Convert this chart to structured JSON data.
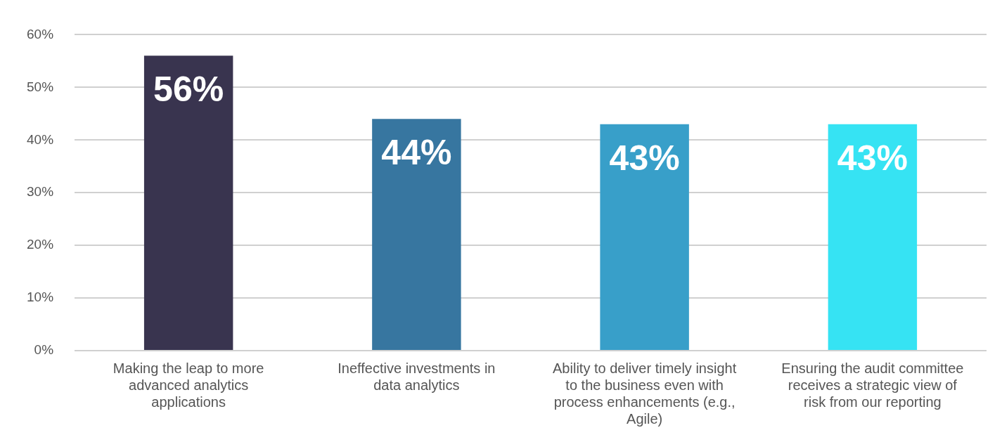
{
  "chart_data": {
    "type": "bar",
    "categories": [
      "Making the leap to more advanced analytics applications",
      "Ineffective investments in data analytics",
      "Ability to deliver timely insight to the business even with process enhancements (e.g., Agile)",
      "Ensuring the audit committee receives a strategic view of risk from our reporting"
    ],
    "values": [
      56,
      44,
      43,
      43
    ],
    "colors": [
      "#39344f",
      "#3776a0",
      "#389fc9",
      "#36e3f3"
    ],
    "value_labels": [
      "56%",
      "44%",
      "43%",
      "43%"
    ],
    "ylim": [
      0,
      60
    ],
    "yticks": [
      {
        "value": 0,
        "label": "0%"
      },
      {
        "value": 10,
        "label": "10%"
      },
      {
        "value": 20,
        "label": "20%"
      },
      {
        "value": 30,
        "label": "30%"
      },
      {
        "value": 40,
        "label": "40%"
      },
      {
        "value": 50,
        "label": "50%"
      },
      {
        "value": 60,
        "label": "60%"
      }
    ],
    "grid": "y",
    "legend": false
  }
}
